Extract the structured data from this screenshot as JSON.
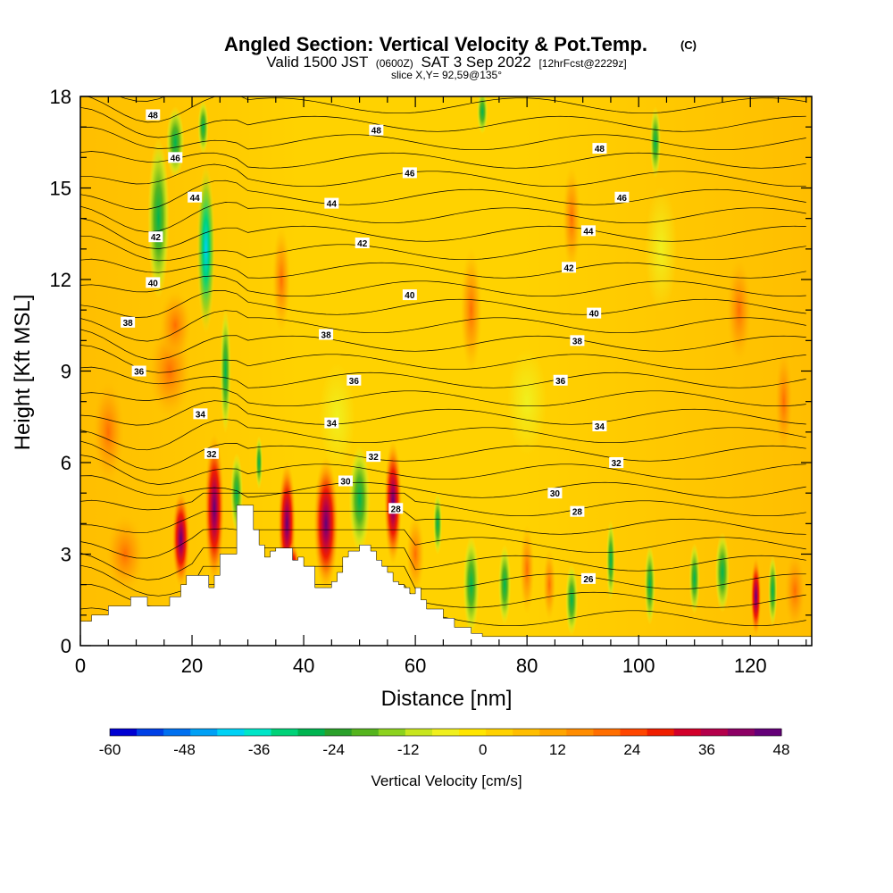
{
  "chart_data": {
    "type": "heatmap",
    "title": "Angled Section: Vertical Velocity & Pot.Temp.",
    "title_mark": "(C)",
    "subtitle_main": "Valid 1500 JST",
    "subtitle_utc": "(0600Z)",
    "subtitle_date": "SAT 3 Sep 2022",
    "subtitle_fcst": "[12hrFcst@2229z]",
    "subtitle2": "slice X,Y= 92,59@135°",
    "xlabel": "Distance [nm]",
    "ylabel": "Height [Kft MSL]",
    "xlim": [
      0,
      131
    ],
    "ylim": [
      0,
      18
    ],
    "x_ticks": [
      0,
      20,
      40,
      60,
      80,
      100,
      120
    ],
    "y_ticks": [
      0,
      3,
      6,
      9,
      12,
      15,
      18
    ],
    "colorbar": {
      "label": "Vertical Velocity [cm/s]",
      "ticks": [
        -60,
        -48,
        -36,
        -24,
        -12,
        0,
        12,
        24,
        36,
        48
      ],
      "min": -60,
      "max": 48,
      "colors": [
        "#0000d2",
        "#0040e6",
        "#0070f0",
        "#00a0f5",
        "#00d2f5",
        "#00e6c8",
        "#00d278",
        "#00b450",
        "#2aa02a",
        "#55b41e",
        "#8cd21e",
        "#c8e61e",
        "#f0f01e",
        "#ffe600",
        "#ffd200",
        "#ffbe00",
        "#ffa500",
        "#ff8c00",
        "#ff6e00",
        "#ff4600",
        "#f01e00",
        "#d2002a",
        "#b4004b",
        "#8c0064",
        "#640078"
      ]
    },
    "terrain_profile": {
      "x": [
        0,
        1,
        2,
        5,
        9,
        12,
        16,
        18,
        19,
        22,
        23,
        24,
        25,
        28,
        29,
        31,
        32,
        33,
        34,
        35,
        37,
        38,
        39,
        40,
        42,
        44,
        45,
        46,
        47,
        48,
        50,
        52,
        53,
        54,
        55,
        56,
        57,
        58,
        59,
        60,
        61,
        62,
        63,
        65,
        67,
        70,
        72,
        131
      ],
      "y": [
        0.8,
        0.8,
        1.0,
        1.3,
        1.6,
        1.3,
        1.6,
        2.0,
        2.3,
        2.3,
        1.9,
        2.3,
        3.0,
        4.6,
        4.6,
        3.8,
        3.3,
        2.9,
        3.1,
        3.2,
        3.2,
        2.8,
        2.9,
        2.6,
        1.9,
        1.9,
        2.1,
        2.4,
        2.9,
        3.1,
        3.3,
        3.1,
        2.8,
        2.6,
        2.4,
        2.1,
        2.0,
        1.9,
        1.7,
        1.9,
        1.5,
        1.2,
        1.2,
        0.9,
        0.6,
        0.4,
        0.3,
        0.3
      ]
    },
    "contour_labels": [
      {
        "x": 13,
        "y": 17.4,
        "text": "48"
      },
      {
        "x": 53,
        "y": 16.9,
        "text": "48"
      },
      {
        "x": 93,
        "y": 16.3,
        "text": "48"
      },
      {
        "x": 17,
        "y": 16.0,
        "text": "46"
      },
      {
        "x": 59,
        "y": 15.5,
        "text": "46"
      },
      {
        "x": 97,
        "y": 14.7,
        "text": "46"
      },
      {
        "x": 20.5,
        "y": 14.7,
        "text": "44"
      },
      {
        "x": 45,
        "y": 14.5,
        "text": "44"
      },
      {
        "x": 91,
        "y": 13.6,
        "text": "44"
      },
      {
        "x": 13.5,
        "y": 13.4,
        "text": "42"
      },
      {
        "x": 50.5,
        "y": 13.2,
        "text": "42"
      },
      {
        "x": 87.5,
        "y": 12.4,
        "text": "42"
      },
      {
        "x": 13,
        "y": 11.9,
        "text": "40"
      },
      {
        "x": 59,
        "y": 11.5,
        "text": "40"
      },
      {
        "x": 92,
        "y": 10.9,
        "text": "40"
      },
      {
        "x": 8.5,
        "y": 10.6,
        "text": "38"
      },
      {
        "x": 44,
        "y": 10.2,
        "text": "38"
      },
      {
        "x": 89,
        "y": 10.0,
        "text": "38"
      },
      {
        "x": 10.5,
        "y": 9.0,
        "text": "36"
      },
      {
        "x": 49,
        "y": 8.7,
        "text": "36"
      },
      {
        "x": 86,
        "y": 8.7,
        "text": "36"
      },
      {
        "x": 21.5,
        "y": 7.6,
        "text": "34"
      },
      {
        "x": 45,
        "y": 7.3,
        "text": "34"
      },
      {
        "x": 93,
        "y": 7.2,
        "text": "34"
      },
      {
        "x": 23.5,
        "y": 6.3,
        "text": "32"
      },
      {
        "x": 52.5,
        "y": 6.2,
        "text": "32"
      },
      {
        "x": 96,
        "y": 6.0,
        "text": "32"
      },
      {
        "x": 47.5,
        "y": 5.4,
        "text": "30"
      },
      {
        "x": 85,
        "y": 5.0,
        "text": "30"
      },
      {
        "x": 56.5,
        "y": 4.5,
        "text": "28"
      },
      {
        "x": 89,
        "y": 4.4,
        "text": "28"
      },
      {
        "x": 91,
        "y": 2.2,
        "text": "26"
      }
    ]
  }
}
